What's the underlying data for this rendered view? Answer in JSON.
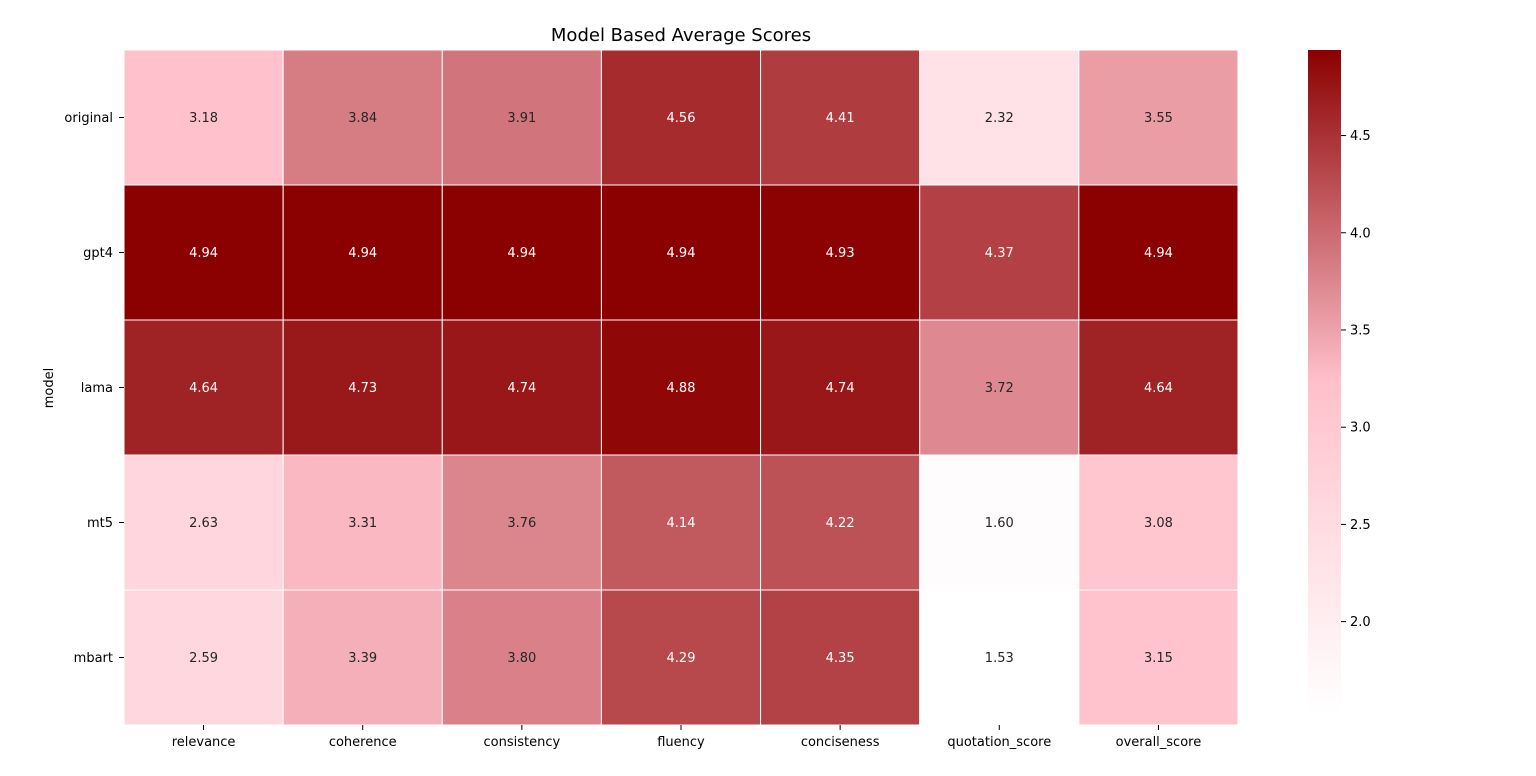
{
  "chart_data": {
    "type": "heatmap",
    "title": "Model Based Average Scores",
    "xlabel": "",
    "ylabel": "model",
    "x_categories": [
      "relevance",
      "coherence",
      "consistency",
      "fluency",
      "conciseness",
      "quotation_score",
      "overall_score"
    ],
    "y_categories": [
      "original",
      "gpt4",
      "lama",
      "mt5",
      "mbart"
    ],
    "values": [
      [
        3.18,
        3.84,
        3.91,
        4.56,
        4.41,
        2.32,
        3.55
      ],
      [
        4.94,
        4.94,
        4.94,
        4.94,
        4.93,
        4.37,
        4.94
      ],
      [
        4.64,
        4.73,
        4.74,
        4.88,
        4.74,
        3.72,
        4.64
      ],
      [
        2.63,
        3.31,
        3.76,
        4.14,
        4.22,
        1.6,
        3.08
      ],
      [
        2.59,
        3.39,
        3.8,
        4.29,
        4.35,
        1.53,
        3.15
      ]
    ],
    "value_labels": [
      [
        "3.18",
        "3.84",
        "3.91",
        "4.56",
        "4.41",
        "2.32",
        "3.55"
      ],
      [
        "4.94",
        "4.94",
        "4.94",
        "4.94",
        "4.93",
        "4.37",
        "4.94"
      ],
      [
        "4.64",
        "4.73",
        "4.74",
        "4.88",
        "4.74",
        "3.72",
        "4.64"
      ],
      [
        "2.63",
        "3.31",
        "3.76",
        "4.14",
        "4.22",
        "1.60",
        "3.08"
      ],
      [
        "2.59",
        "3.39",
        "3.80",
        "4.29",
        "4.35",
        "1.53",
        "3.15"
      ]
    ],
    "colorbar": {
      "range": [
        1.53,
        4.94
      ],
      "ticks": [
        2.0,
        2.5,
        3.0,
        3.5,
        4.0,
        4.5
      ],
      "tick_labels": [
        "2.0",
        "2.5",
        "3.0",
        "3.5",
        "4.0",
        "4.5"
      ],
      "colormap": [
        "#ffffff",
        "#ffc0cb",
        "#8b0000"
      ]
    },
    "grid": false,
    "legend": "colorbar-right"
  }
}
